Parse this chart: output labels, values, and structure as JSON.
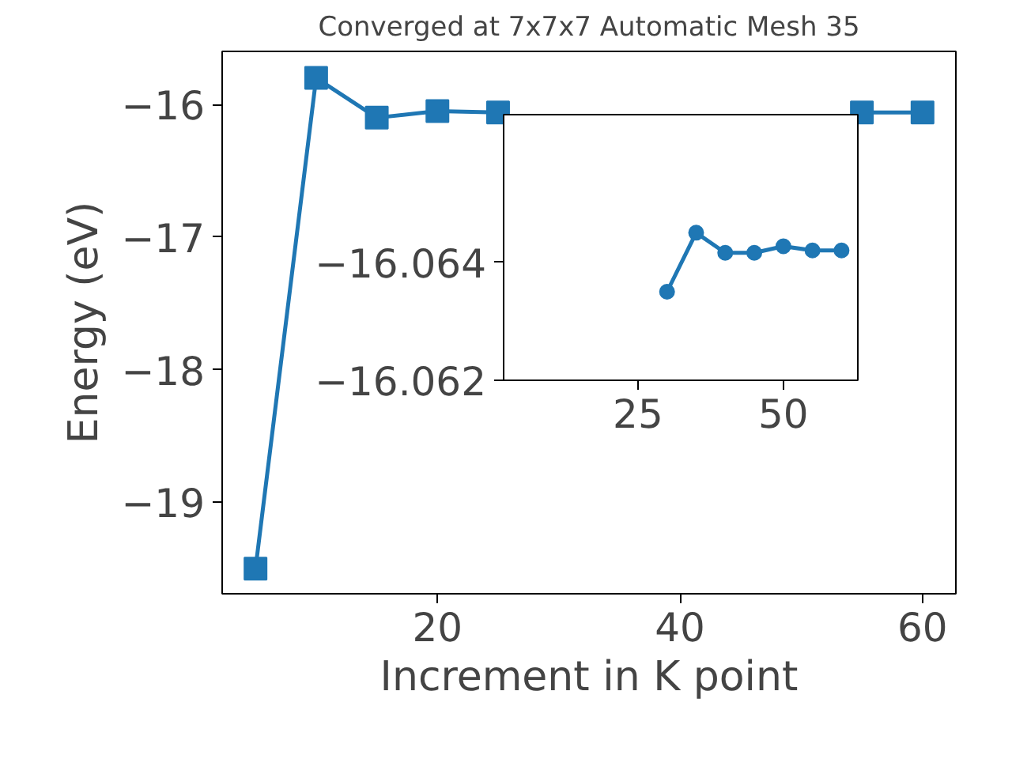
{
  "chart_data": [
    {
      "type": "line",
      "title": "Converged at 7x7x7 Automatic Mesh 35",
      "xlabel": "Increment in K point",
      "ylabel": "Energy (eV)",
      "x": [
        5,
        10,
        15,
        20,
        25,
        30,
        35,
        40,
        45,
        50,
        55,
        60
      ],
      "series": [
        {
          "color": "#1f77b4",
          "values": [
            -19.5,
            -15.8,
            -16.1,
            -16.05,
            -16.06,
            null,
            null,
            null,
            null,
            null,
            -16.06,
            -16.06
          ]
        }
      ],
      "xlim": [
        2.25,
        62.75
      ],
      "ylim": [
        -19.69,
        -15.6
      ],
      "xticks": [
        20,
        40,
        60
      ],
      "yticks": [
        -19,
        -18,
        -17,
        -16
      ],
      "marker": "square",
      "grid": false
    },
    {
      "type": "line",
      "x": [
        30,
        35,
        40,
        45,
        50,
        55,
        60
      ],
      "series": [
        {
          "color": "#1f77b4",
          "values": [
            -16.0635,
            -16.0645,
            -16.06416,
            -16.06416,
            -16.06427,
            -16.0642,
            -16.0642
          ]
        }
      ],
      "xlim": [
        1.9,
        62.8
      ],
      "ylim": [
        -16.062,
        -16.0665
      ],
      "xticks": [
        25,
        50
      ],
      "yticks": [
        -16.064,
        -16.062
      ],
      "marker": "circle",
      "grid": false
    }
  ]
}
